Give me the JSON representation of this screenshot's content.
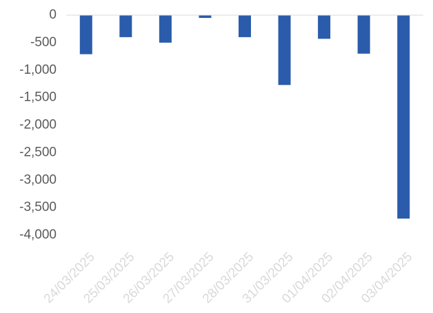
{
  "chart_data": {
    "type": "bar",
    "title": "",
    "xlabel": "",
    "ylabel": "",
    "categories": [
      "24/03/2025",
      "25/03/2025",
      "26/03/2025",
      "27/03/2025",
      "28/03/2025",
      "31/03/2025",
      "01/04/2025",
      "02/04/2025",
      "03/04/2025"
    ],
    "series": [
      {
        "values": [
          -710,
          -400,
          -500,
          -50,
          -400,
          -1270,
          -430,
          -700,
          -3700
        ]
      }
    ],
    "ylim": [
      -4000,
      0
    ],
    "yticks": [
      0,
      -500,
      -1000,
      -1500,
      -2000,
      -2500,
      -3000,
      -3500,
      -4000
    ],
    "ytick_labels": [
      "0",
      "-500",
      "-1,000",
      "-1,500",
      "-2,000",
      "-2,500",
      "-3,000",
      "-3,500",
      "-4,000"
    ],
    "grid": false,
    "legend": "none",
    "colors": {
      "bar": "#2b5cab",
      "axis": "#d9d9d9",
      "tick_text": "#595959",
      "category_text": "#d9d9d9"
    }
  }
}
